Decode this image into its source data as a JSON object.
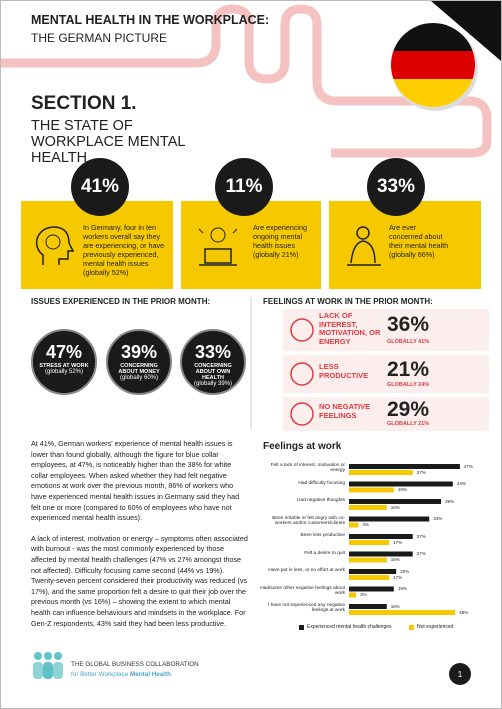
{
  "header": {
    "title": "MENTAL HEALTH IN THE WORKPLACE:",
    "subtitle": "THE GERMAN PICTURE"
  },
  "section": {
    "title": "SECTION 1.",
    "subtitle": "THE STATE OF WORKPLACE MENTAL HEALTH"
  },
  "stats": [
    {
      "value": "41%",
      "text": "In Germany, four in ten workers overall say they are experiencing, or have previously experienced, mental health issues (globally 52%)"
    },
    {
      "value": "11%",
      "text": "Are experiencing ongoing mental health issues (globally 21%)"
    },
    {
      "value": "33%",
      "text": "Are ever concerned about their mental health (globally 66%)"
    }
  ],
  "issues": {
    "title": "ISSUES EXPERIENCED IN THE PRIOR MONTH:",
    "items": [
      {
        "value": "47%",
        "label": "STRESS AT WORK",
        "global": "(globally 52%)"
      },
      {
        "value": "39%",
        "label": "CONCERNING ABOUT MONEY",
        "global": "(globally 60%)"
      },
      {
        "value": "33%",
        "label": "CONCERNING ABOUT OWN HEALTH",
        "global": "(globally 39%)"
      }
    ]
  },
  "feelings": {
    "title": "FEELINGS AT WORK IN THE PRIOR MONTH:",
    "items": [
      {
        "label": "LACK OF INTEREST, MOTIVATION, OR ENERGY",
        "value": "36%",
        "global": "GLOBALLY 41%"
      },
      {
        "label": "LESS PRODUCTIVE",
        "value": "21%",
        "global": "GLOBALLY 24%"
      },
      {
        "label": "NO NEGATIVE FEELINGS",
        "value": "29%",
        "global": "GLOBALLY 21%"
      }
    ]
  },
  "body": {
    "paragraphs": [
      "At 41%, German workers' experience of mental health issues is lower than found globally, although the figure for blue collar employees, at 47%, is noticeably higher than the 38% for white collar employees. When asked whether they had felt negative emotions at work over the previous month, 86% of workers who have experienced mental health issues in Germany said they had felt one or more (compared to 60% of employees who have not experienced mental health issues).",
      "A lack of interest, motivation or energy – symptoms often associated with burnout - was the most commonly experienced by those affected by mental health challenges (47% vs 27% amongst those not affected). Difficulty focusing came second (44% vs 19%). Twenty-seven percent considered their productivity was reduced (vs 17%), and the same proportion felt a desire to quit their job over the previous month (vs 16%) – showing the extent to which mental health can influence behaviours and mindsets in the workplace. For Gen-Z respondents, 43% said they had been less productive."
    ]
  },
  "chart_data": {
    "type": "bar",
    "orientation": "horizontal",
    "title": "Feelings at work",
    "categories": [
      "Felt a lack of interest, motivation or energy",
      "Had difficulty focusing",
      "Had negative thoughts",
      "Been irritable or felt angry with co-workers and/or customers/clients",
      "Been less productive",
      "Felt a desire to quit",
      "Have put in less, or no effort at work",
      "Had/some other negative feelings about work",
      "I have not experienced any negative feelings at work"
    ],
    "series": [
      {
        "name": "Experienced mental health challenges",
        "color": "#1a1a1a",
        "values": [
          47,
          44,
          39,
          34,
          27,
          27,
          20,
          19,
          16
        ],
        "value_labels": [
          "47%",
          "44%",
          "39%",
          "34%",
          "27%",
          "27%",
          "20%",
          "19%",
          "16%"
        ]
      },
      {
        "name": "Not experienced",
        "color": "#f5c800",
        "values": [
          27,
          19,
          16,
          4,
          17,
          16,
          17,
          3,
          45
        ],
        "value_labels": [
          "27%",
          "19%",
          "16%",
          "4%",
          "17%",
          "16%",
          "17%",
          "3%",
          "45%"
        ]
      }
    ],
    "xlim": [
      0,
      50
    ]
  },
  "footer": {
    "org": "THE GLOBAL BUSINESS COLLABORATION",
    "tagline": "for Better Workplace",
    "tagline_bold": "Mental Health",
    "page": "1"
  }
}
